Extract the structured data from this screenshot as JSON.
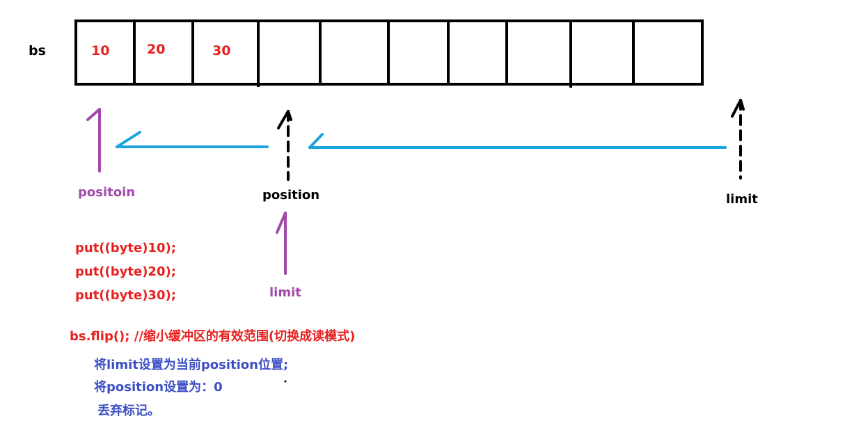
{
  "buffer": {
    "name": "bs",
    "values": [
      "10",
      "20",
      "30",
      "",
      "",
      "",
      "",
      "",
      "",
      ""
    ]
  },
  "pointers": {
    "position_new": "positoin",
    "position_old": "position",
    "limit_old": "limit",
    "limit_new": "limit"
  },
  "code": {
    "put_lines": [
      "put((byte)10);",
      "put((byte)20);",
      "put((byte)30);"
    ],
    "flip_line": "bs.flip(); //缩小缓冲区的有效范围(切换成读模式)"
  },
  "explanation": [
    "将limit设置为当前position位置;",
    "将position设置为：0",
    "丢弃标记。"
  ],
  "colors": {
    "red": "#e8201e",
    "purple": "#a14aa8",
    "cyan": "#1aa3dc",
    "blue": "#3c4fc4",
    "black": "#000000"
  }
}
